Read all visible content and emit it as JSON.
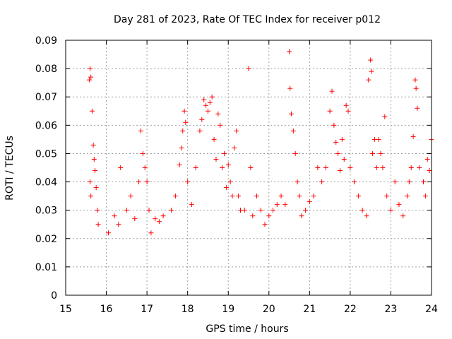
{
  "chart_data": {
    "type": "scatter",
    "title": "Day 281 of 2023, Rate Of TEC Index for receiver p012",
    "xlabel": "GPS time / hours",
    "ylabel": "ROTI / TECUs",
    "xlim": [
      15,
      24
    ],
    "ylim": [
      0,
      0.09
    ],
    "xticks": [
      "15",
      "16",
      "17",
      "18",
      "19",
      "20",
      "21",
      "22",
      "23",
      "24"
    ],
    "yticks": [
      "0",
      "0.01",
      "0.02",
      "0.03",
      "0.04",
      "0.05",
      "0.06",
      "0.07",
      "0.08",
      "0.09"
    ],
    "grid": true,
    "marker": "+",
    "color": "#ff0000",
    "series": [
      {
        "points": [
          [
            15.58,
            0.076
          ],
          [
            15.6,
            0.08
          ],
          [
            15.62,
            0.077
          ],
          [
            15.65,
            0.065
          ],
          [
            15.6,
            0.04
          ],
          [
            15.62,
            0.035
          ],
          [
            15.68,
            0.053
          ],
          [
            15.7,
            0.048
          ],
          [
            15.72,
            0.044
          ],
          [
            15.75,
            0.038
          ],
          [
            15.78,
            0.03
          ],
          [
            15.8,
            0.025
          ],
          [
            16.05,
            0.022
          ],
          [
            16.2,
            0.028
          ],
          [
            16.3,
            0.025
          ],
          [
            16.35,
            0.045
          ],
          [
            16.5,
            0.03
          ],
          [
            16.6,
            0.035
          ],
          [
            16.7,
            0.027
          ],
          [
            16.8,
            0.04
          ],
          [
            16.85,
            0.058
          ],
          [
            16.9,
            0.05
          ],
          [
            16.95,
            0.045
          ],
          [
            17.0,
            0.04
          ],
          [
            17.05,
            0.03
          ],
          [
            17.1,
            0.022
          ],
          [
            17.2,
            0.027
          ],
          [
            17.3,
            0.026
          ],
          [
            17.4,
            0.028
          ],
          [
            17.6,
            0.03
          ],
          [
            17.7,
            0.035
          ],
          [
            17.8,
            0.046
          ],
          [
            17.85,
            0.052
          ],
          [
            17.88,
            0.058
          ],
          [
            17.92,
            0.065
          ],
          [
            17.95,
            0.061
          ],
          [
            18.0,
            0.04
          ],
          [
            18.1,
            0.032
          ],
          [
            18.2,
            0.045
          ],
          [
            18.3,
            0.058
          ],
          [
            18.35,
            0.062
          ],
          [
            18.4,
            0.069
          ],
          [
            18.45,
            0.067
          ],
          [
            18.5,
            0.065
          ],
          [
            18.55,
            0.068
          ],
          [
            18.6,
            0.07
          ],
          [
            18.65,
            0.055
          ],
          [
            18.7,
            0.048
          ],
          [
            18.75,
            0.064
          ],
          [
            18.8,
            0.06
          ],
          [
            18.85,
            0.045
          ],
          [
            18.9,
            0.05
          ],
          [
            18.95,
            0.038
          ],
          [
            19.0,
            0.046
          ],
          [
            19.05,
            0.04
          ],
          [
            19.1,
            0.035
          ],
          [
            19.15,
            0.052
          ],
          [
            19.2,
            0.058
          ],
          [
            19.25,
            0.035
          ],
          [
            19.3,
            0.03
          ],
          [
            19.4,
            0.03
          ],
          [
            19.5,
            0.08
          ],
          [
            19.55,
            0.045
          ],
          [
            19.6,
            0.028
          ],
          [
            19.7,
            0.035
          ],
          [
            19.8,
            0.03
          ],
          [
            19.9,
            0.025
          ],
          [
            20.0,
            0.028
          ],
          [
            20.1,
            0.03
          ],
          [
            20.2,
            0.032
          ],
          [
            20.3,
            0.035
          ],
          [
            20.4,
            0.032
          ],
          [
            20.5,
            0.086
          ],
          [
            20.52,
            0.073
          ],
          [
            20.55,
            0.064
          ],
          [
            20.6,
            0.058
          ],
          [
            20.65,
            0.05
          ],
          [
            20.7,
            0.04
          ],
          [
            20.75,
            0.035
          ],
          [
            20.8,
            0.028
          ],
          [
            20.9,
            0.03
          ],
          [
            21.0,
            0.033
          ],
          [
            21.1,
            0.035
          ],
          [
            21.2,
            0.045
          ],
          [
            21.3,
            0.04
          ],
          [
            21.4,
            0.045
          ],
          [
            21.5,
            0.065
          ],
          [
            21.55,
            0.072
          ],
          [
            21.6,
            0.06
          ],
          [
            21.65,
            0.054
          ],
          [
            21.7,
            0.05
          ],
          [
            21.75,
            0.044
          ],
          [
            21.8,
            0.055
          ],
          [
            21.85,
            0.048
          ],
          [
            21.9,
            0.067
          ],
          [
            21.95,
            0.065
          ],
          [
            22.0,
            0.045
          ],
          [
            22.1,
            0.04
          ],
          [
            22.2,
            0.035
          ],
          [
            22.3,
            0.03
          ],
          [
            22.4,
            0.028
          ],
          [
            22.45,
            0.076
          ],
          [
            22.5,
            0.083
          ],
          [
            22.52,
            0.079
          ],
          [
            22.55,
            0.05
          ],
          [
            22.6,
            0.055
          ],
          [
            22.65,
            0.045
          ],
          [
            22.7,
            0.055
          ],
          [
            22.75,
            0.05
          ],
          [
            22.8,
            0.045
          ],
          [
            22.85,
            0.063
          ],
          [
            22.9,
            0.035
          ],
          [
            23.0,
            0.03
          ],
          [
            23.1,
            0.04
          ],
          [
            23.2,
            0.032
          ],
          [
            23.3,
            0.028
          ],
          [
            23.4,
            0.035
          ],
          [
            23.45,
            0.04
          ],
          [
            23.5,
            0.045
          ],
          [
            23.55,
            0.056
          ],
          [
            23.6,
            0.076
          ],
          [
            23.62,
            0.073
          ],
          [
            23.65,
            0.066
          ],
          [
            23.7,
            0.045
          ],
          [
            23.8,
            0.04
          ],
          [
            23.85,
            0.035
          ],
          [
            23.9,
            0.048
          ],
          [
            23.95,
            0.044
          ],
          [
            24.0,
            0.055
          ]
        ]
      }
    ]
  }
}
